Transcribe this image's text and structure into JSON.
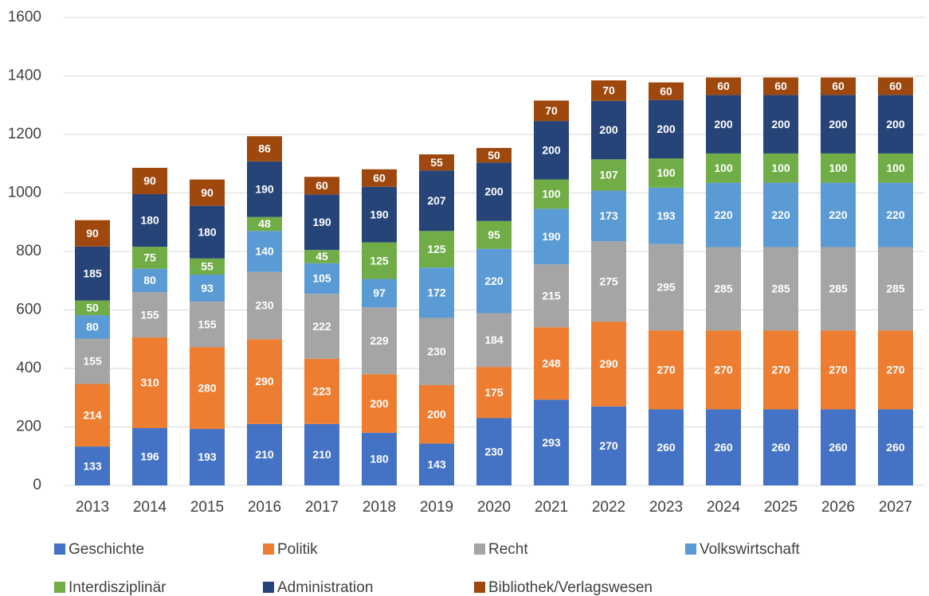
{
  "chart_data": {
    "type": "stacked_bar",
    "categories": [
      "2013",
      "2014",
      "2015",
      "2016",
      "2017",
      "2018",
      "2019",
      "2020",
      "2021",
      "2022",
      "2023",
      "2024",
      "2025",
      "2026",
      "2027"
    ],
    "series": [
      {
        "name": "Geschichte",
        "color": "#4472c4",
        "values": [
          133,
          196,
          193,
          210,
          210,
          180,
          143,
          230,
          293,
          270,
          260,
          260,
          260,
          260,
          260
        ]
      },
      {
        "name": "Politik",
        "color": "#ed7d31",
        "values": [
          214,
          310,
          280,
          290,
          223,
          200,
          200,
          175,
          248,
          290,
          270,
          270,
          270,
          270,
          270
        ]
      },
      {
        "name": "Recht",
        "color": "#a5a5a5",
        "values": [
          155,
          155,
          155,
          230,
          222,
          229,
          230,
          184,
          215,
          275,
          295,
          285,
          285,
          285,
          285
        ]
      },
      {
        "name": "Volkswirtschaft",
        "color": "#5b9bd5",
        "values": [
          80,
          80,
          93,
          140,
          105,
          97,
          172,
          220,
          190,
          173,
          193,
          220,
          220,
          220,
          220
        ]
      },
      {
        "name": "Interdisziplinär",
        "color": "#70ad47",
        "values": [
          50,
          75,
          55,
          48,
          45,
          125,
          125,
          95,
          100,
          107,
          100,
          100,
          100,
          100,
          100
        ]
      },
      {
        "name": "Administration",
        "color": "#264478",
        "values": [
          185,
          180,
          180,
          190,
          190,
          190,
          207,
          200,
          200,
          200,
          200,
          200,
          200,
          200,
          200
        ]
      },
      {
        "name": "Bibliothek/Verlagswesen",
        "color": "#9e480e",
        "values": [
          90,
          90,
          90,
          86,
          60,
          60,
          55,
          50,
          70,
          70,
          60,
          60,
          60,
          60,
          60
        ]
      }
    ],
    "ylim": [
      0,
      1600
    ],
    "yticks": [
      0,
      200,
      400,
      600,
      800,
      1000,
      1200,
      1400,
      1600
    ],
    "grid": true,
    "legend": "bottom"
  }
}
